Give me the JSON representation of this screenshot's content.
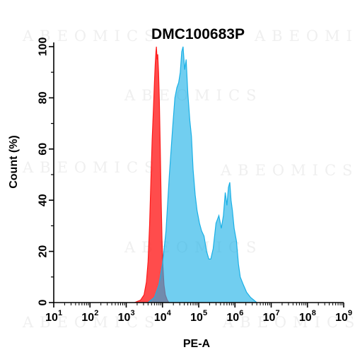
{
  "chart_data": {
    "type": "area",
    "title": "DMC100683P",
    "xlabel": "PE-A",
    "ylabel": "Count  (%)",
    "xscale": "log10",
    "xlim": [
      10,
      1000000000
    ],
    "ylim": [
      0,
      100
    ],
    "xticks": [
      {
        "base": "10",
        "exp": "1",
        "value": 10
      },
      {
        "base": "10",
        "exp": "2",
        "value": 100
      },
      {
        "base": "10",
        "exp": "3",
        "value": 1000
      },
      {
        "base": "10",
        "exp": "4",
        "value": 10000
      },
      {
        "base": "10",
        "exp": "5",
        "value": 100000
      },
      {
        "base": "10",
        "exp": "6",
        "value": 1000000
      },
      {
        "base": "10",
        "exp": "7",
        "value": 10000000
      },
      {
        "base": "10",
        "exp": "8",
        "value": 100000000
      },
      {
        "base": "10",
        "exp": "9",
        "value": 1000000000
      }
    ],
    "yticks": [
      0,
      20,
      40,
      60,
      80,
      100
    ],
    "watermark": "ABEOMICS",
    "series": [
      {
        "color": "#ff1a1a",
        "fill_opacity": 0.78,
        "points": [
          [
            1700,
            0
          ],
          [
            2500,
            1
          ],
          [
            3100,
            3
          ],
          [
            3600,
            8
          ],
          [
            4000,
            16
          ],
          [
            4400,
            30
          ],
          [
            4800,
            48
          ],
          [
            5200,
            64
          ],
          [
            5600,
            75
          ],
          [
            6000,
            86
          ],
          [
            6300,
            93
          ],
          [
            6600,
            98
          ],
          [
            6800,
            100
          ],
          [
            7100,
            95
          ],
          [
            7400,
            97
          ],
          [
            7800,
            90
          ],
          [
            8200,
            79
          ],
          [
            8700,
            60
          ],
          [
            9200,
            40
          ],
          [
            9700,
            25
          ],
          [
            10300,
            14
          ],
          [
            11000,
            7
          ],
          [
            12000,
            3
          ],
          [
            13500,
            1
          ],
          [
            15000,
            0
          ]
        ]
      },
      {
        "color": "#1ab0e6",
        "fill_opacity": 0.62,
        "points": [
          [
            4000,
            0
          ],
          [
            6000,
            2
          ],
          [
            8000,
            7
          ],
          [
            10000,
            15
          ],
          [
            12500,
            28
          ],
          [
            15500,
            50
          ],
          [
            19000,
            68
          ],
          [
            22000,
            80
          ],
          [
            25000,
            84
          ],
          [
            28000,
            86
          ],
          [
            31000,
            90
          ],
          [
            34000,
            98
          ],
          [
            37000,
            100
          ],
          [
            41000,
            91
          ],
          [
            45000,
            95
          ],
          [
            50000,
            82
          ],
          [
            57000,
            71
          ],
          [
            63000,
            65
          ],
          [
            70000,
            52
          ],
          [
            80000,
            42
          ],
          [
            90000,
            36
          ],
          [
            105000,
            31
          ],
          [
            120000,
            28
          ],
          [
            140000,
            26
          ],
          [
            165000,
            20
          ],
          [
            190000,
            17
          ],
          [
            215000,
            17
          ],
          [
            250000,
            21
          ],
          [
            300000,
            31
          ],
          [
            360000,
            34
          ],
          [
            420000,
            29
          ],
          [
            480000,
            34
          ],
          [
            540000,
            43
          ],
          [
            600000,
            38
          ],
          [
            660000,
            45
          ],
          [
            720000,
            47
          ],
          [
            780000,
            40
          ],
          [
            850000,
            36
          ],
          [
            950000,
            29
          ],
          [
            1100000,
            24
          ],
          [
            1250000,
            15
          ],
          [
            1400000,
            10
          ],
          [
            1700000,
            7
          ],
          [
            2100000,
            4
          ],
          [
            2700000,
            2
          ],
          [
            3300000,
            1
          ],
          [
            4000000,
            0
          ]
        ]
      }
    ]
  }
}
